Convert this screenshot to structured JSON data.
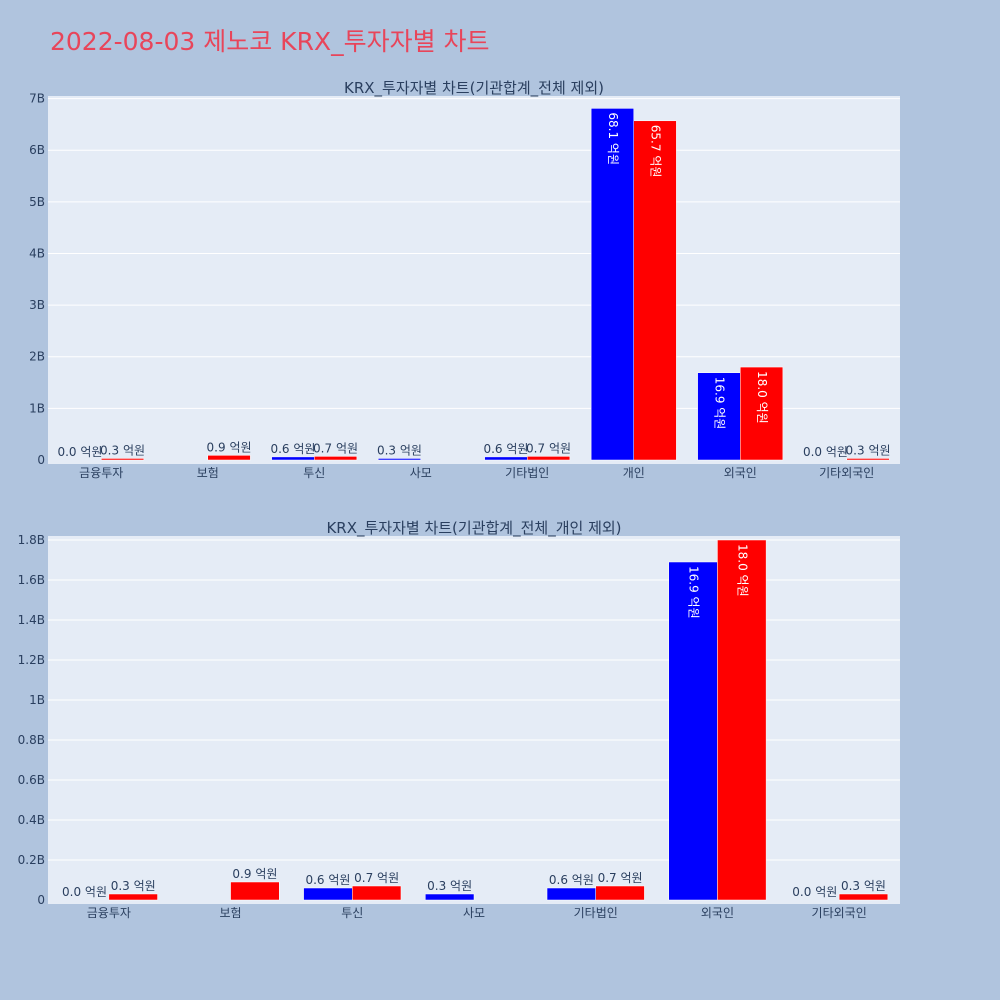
{
  "page": {
    "title": "2022-08-03 제노코 KRX_투자자별 차트",
    "background": "#b0c4de",
    "title_color": "#e8455a",
    "plot_background": "#e5ecf6",
    "gridline_color": "#ffffff",
    "series_colors": [
      "#0000ff",
      "#ff0000"
    ]
  },
  "chart_data": [
    {
      "type": "bar",
      "title": "KRX_투자자별 차트(기관합계_전체 제외)",
      "xlabel": "",
      "ylabel": "",
      "categories": [
        "금융투자",
        "보험",
        "투신",
        "사모",
        "기타법인",
        "개인",
        "외국인",
        "기타외국인"
      ],
      "series": [
        {
          "values": [
            0,
            0,
            60000000,
            30000000,
            60000000,
            6810000000,
            1690000000,
            0
          ],
          "labels": [
            "0.0 억원",
            "",
            "0.6 억원",
            "0.3 억원",
            "0.6 억원",
            "68.1 억원",
            "16.9 억원",
            "0.0 억원"
          ]
        },
        {
          "values": [
            30000000,
            90000000,
            70000000,
            0,
            70000000,
            6570000000,
            1800000000,
            30000000
          ],
          "labels": [
            "0.3 억원",
            "0.9 억원",
            "0.7 억원",
            "",
            "0.7 억원",
            "65.7 억원",
            "18.0 억원",
            "0.3 억원"
          ]
        }
      ],
      "ylim": [
        0,
        7050000000
      ],
      "yticks": [
        0,
        1000000000,
        2000000000,
        3000000000,
        4000000000,
        5000000000,
        6000000000,
        7000000000
      ],
      "yticklabels": [
        "0",
        "1B",
        "2B",
        "3B",
        "4B",
        "5B",
        "6B",
        "7B"
      ],
      "grid": true,
      "legend": "none"
    },
    {
      "type": "bar",
      "title": "KRX_투자자별 차트(기관합계_전체_개인 제외)",
      "xlabel": "",
      "ylabel": "",
      "categories": [
        "금융투자",
        "보험",
        "투신",
        "사모",
        "기타법인",
        "외국인",
        "기타외국인"
      ],
      "series": [
        {
          "values": [
            0,
            0,
            60000000,
            30000000,
            60000000,
            1690000000,
            0
          ],
          "labels": [
            "0.0 억원",
            "",
            "0.6 억원",
            "0.3 억원",
            "0.6 억원",
            "16.9 억원",
            "0.0 억원"
          ]
        },
        {
          "values": [
            30000000,
            90000000,
            70000000,
            0,
            70000000,
            1800000000,
            30000000
          ],
          "labels": [
            "0.3 억원",
            "0.9 억원",
            "0.7 억원",
            "",
            "0.7 억원",
            "18.0 억원",
            "0.3 억원"
          ]
        }
      ],
      "ylim": [
        0,
        1820000000
      ],
      "yticks": [
        0,
        200000000,
        400000000,
        600000000,
        800000000,
        1000000000,
        1200000000,
        1400000000,
        1600000000,
        1800000000
      ],
      "yticklabels": [
        "0",
        "0.2B",
        "0.4B",
        "0.6B",
        "0.8B",
        "1B",
        "1.2B",
        "1.4B",
        "1.6B",
        "1.8B"
      ],
      "grid": true,
      "legend": "none"
    }
  ]
}
